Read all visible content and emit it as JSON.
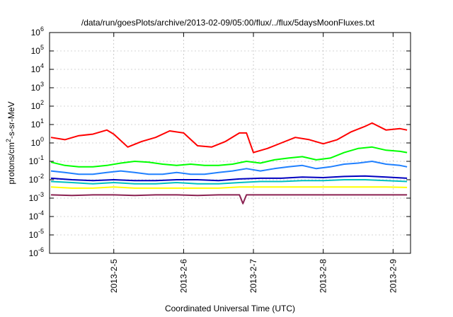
{
  "chart_data": {
    "type": "line",
    "title": "/data/run/goesPlots/archive/2013-02-09/05:00/flux/../flux/5daysMoonFluxes.txt",
    "xlabel": "Coordinated Universal Time (UTC)",
    "ylabel": "protons/cm²-s-sr-MeV",
    "y_scale": "log",
    "ylim": [
      1e-06,
      1000000.0
    ],
    "xlim": [
      4.08,
      9.25
    ],
    "x_unit": "day of February 2013",
    "x_ticks": [
      {
        "value": 5,
        "label": "2013-2-5"
      },
      {
        "value": 6,
        "label": "2013-2-6"
      },
      {
        "value": 7,
        "label": "2013-2-7"
      },
      {
        "value": 8,
        "label": "2013-2-8"
      },
      {
        "value": 9,
        "label": "2013-2-9"
      }
    ],
    "y_ticks": [
      {
        "exp": -6,
        "label": "10",
        "sup": "-6"
      },
      {
        "exp": -5,
        "label": "10",
        "sup": "-5"
      },
      {
        "exp": -4,
        "label": "10",
        "sup": "-4"
      },
      {
        "exp": -3,
        "label": "10",
        "sup": "-3"
      },
      {
        "exp": -2,
        "label": "10",
        "sup": "-2"
      },
      {
        "exp": -1,
        "label": "10",
        "sup": "-1"
      },
      {
        "exp": 0,
        "label": "10",
        "sup": "0"
      },
      {
        "exp": 1,
        "label": "10",
        "sup": "1"
      },
      {
        "exp": 2,
        "label": "10",
        "sup": "2"
      },
      {
        "exp": 3,
        "label": "10",
        "sup": "3"
      },
      {
        "exp": 4,
        "label": "10",
        "sup": "4"
      },
      {
        "exp": 5,
        "label": "10",
        "sup": "5"
      },
      {
        "exp": 6,
        "label": "10",
        "sup": "6"
      }
    ],
    "grid": true,
    "legend": "none",
    "series": [
      {
        "color": "#ff0000",
        "x": [
          4.1,
          4.3,
          4.5,
          4.7,
          4.9,
          5.0,
          5.2,
          5.4,
          5.6,
          5.8,
          6.0,
          6.2,
          6.4,
          6.6,
          6.8,
          6.9,
          7.0,
          7.2,
          7.4,
          7.6,
          7.8,
          8.0,
          8.2,
          8.4,
          8.6,
          8.7,
          8.9,
          9.1,
          9.2
        ],
        "y": [
          2,
          1.5,
          2.5,
          3,
          5,
          3,
          0.6,
          1.2,
          2,
          4.5,
          3.5,
          0.7,
          0.6,
          1.2,
          3.5,
          3.5,
          0.3,
          0.5,
          1,
          2,
          1.5,
          0.9,
          1.5,
          4,
          8,
          12,
          5,
          6,
          5
        ]
      },
      {
        "color": "#00ff00",
        "x": [
          4.1,
          4.3,
          4.5,
          4.7,
          4.9,
          5.1,
          5.3,
          5.5,
          5.7,
          5.9,
          6.1,
          6.3,
          6.5,
          6.7,
          6.9,
          7.1,
          7.3,
          7.5,
          7.7,
          7.9,
          8.1,
          8.3,
          8.5,
          8.7,
          8.9,
          9.1,
          9.2
        ],
        "y": [
          0.09,
          0.06,
          0.05,
          0.05,
          0.06,
          0.08,
          0.1,
          0.09,
          0.07,
          0.06,
          0.07,
          0.06,
          0.06,
          0.07,
          0.1,
          0.08,
          0.12,
          0.15,
          0.18,
          0.12,
          0.15,
          0.3,
          0.5,
          0.6,
          0.4,
          0.35,
          0.3
        ]
      },
      {
        "color": "#2080ff",
        "x": [
          4.1,
          4.3,
          4.5,
          4.7,
          4.9,
          5.1,
          5.3,
          5.5,
          5.7,
          5.9,
          6.1,
          6.3,
          6.5,
          6.7,
          6.9,
          7.1,
          7.3,
          7.5,
          7.7,
          7.9,
          8.1,
          8.3,
          8.5,
          8.7,
          8.9,
          9.1,
          9.2
        ],
        "y": [
          0.03,
          0.025,
          0.02,
          0.02,
          0.025,
          0.03,
          0.025,
          0.02,
          0.02,
          0.025,
          0.02,
          0.02,
          0.025,
          0.03,
          0.04,
          0.03,
          0.04,
          0.05,
          0.06,
          0.04,
          0.05,
          0.07,
          0.08,
          0.1,
          0.07,
          0.06,
          0.05
        ]
      },
      {
        "color": "#00c0c0",
        "x": [
          4.1,
          4.4,
          4.7,
          5.0,
          5.3,
          5.6,
          5.9,
          6.2,
          6.5,
          6.8,
          7.1,
          7.4,
          7.7,
          8.0,
          8.3,
          8.6,
          8.9,
          9.2
        ],
        "y": [
          0.008,
          0.007,
          0.006,
          0.007,
          0.006,
          0.006,
          0.007,
          0.006,
          0.006,
          0.007,
          0.008,
          0.008,
          0.009,
          0.009,
          0.01,
          0.01,
          0.009,
          0.008
        ]
      },
      {
        "color": "#0000c0",
        "x": [
          4.1,
          4.4,
          4.7,
          5.0,
          5.3,
          5.6,
          5.9,
          6.2,
          6.5,
          6.8,
          7.1,
          7.4,
          7.7,
          8.0,
          8.3,
          8.6,
          8.9,
          9.2
        ],
        "y": [
          0.012,
          0.01,
          0.009,
          0.01,
          0.009,
          0.009,
          0.01,
          0.01,
          0.009,
          0.011,
          0.012,
          0.012,
          0.014,
          0.013,
          0.015,
          0.016,
          0.014,
          0.012
        ]
      },
      {
        "color": "#ffff00",
        "x": [
          4.1,
          4.4,
          4.7,
          5.0,
          5.3,
          5.6,
          5.9,
          6.2,
          6.5,
          6.8,
          7.1,
          7.4,
          7.7,
          8.0,
          8.3,
          8.6,
          8.9,
          9.2
        ],
        "y": [
          0.004,
          0.0035,
          0.0035,
          0.004,
          0.0035,
          0.0035,
          0.0035,
          0.0035,
          0.0035,
          0.004,
          0.004,
          0.004,
          0.004,
          0.004,
          0.004,
          0.004,
          0.004,
          0.0038
        ]
      },
      {
        "color": "#8b2252",
        "x": [
          4.1,
          4.4,
          4.7,
          5.0,
          5.3,
          5.6,
          5.9,
          6.2,
          6.5,
          6.8,
          6.85,
          6.9,
          7.1,
          7.4,
          7.7,
          8.0,
          8.3,
          8.6,
          8.9,
          9.2
        ],
        "y": [
          0.0015,
          0.0014,
          0.0015,
          0.0015,
          0.0014,
          0.0015,
          0.0015,
          0.0014,
          0.0015,
          0.0015,
          0.0005,
          0.0015,
          0.0015,
          0.0015,
          0.0015,
          0.0015,
          0.0015,
          0.0015,
          0.0015,
          0.0015
        ]
      }
    ]
  }
}
